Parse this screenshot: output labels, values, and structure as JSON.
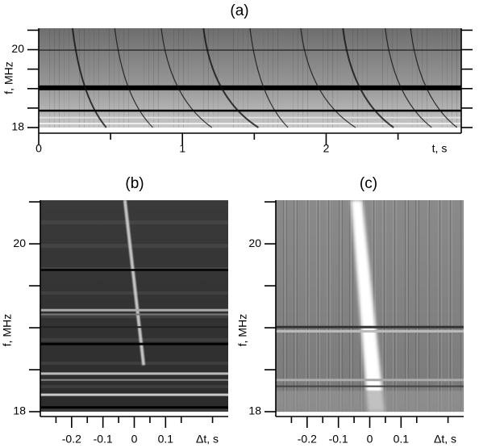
{
  "chart_data": [
    {
      "type": "spectrogram",
      "title": "(a)",
      "xlabel": "t, s",
      "ylabel": "f, MHz",
      "xlim": [
        0,
        2.94
      ],
      "xticks": [
        0,
        1,
        2
      ],
      "xticks_minor": [
        0.5,
        1.5,
        2.5
      ],
      "ylim": [
        18,
        20.55
      ],
      "yticks": [
        18,
        20
      ],
      "yticks_minor": [
        18.5,
        19,
        19.5,
        20.5
      ]
    },
    {
      "type": "spectrogram",
      "title": "(b)",
      "xlabel": "Δt, s",
      "ylabel": "f, MHz",
      "xlim": [
        -0.3,
        0.3
      ],
      "xticks": [
        -0.2,
        -0.1,
        0,
        0.1
      ],
      "xticks_minor": [
        -0.25,
        -0.15,
        -0.05,
        0.05,
        0.15,
        0.25
      ],
      "ylim": [
        18,
        20.52
      ],
      "yticks": [
        18,
        20
      ],
      "yticks_minor": [
        18.5,
        19,
        19.5,
        20.5
      ]
    },
    {
      "type": "spectrogram",
      "title": "(c)",
      "xlabel": "Δt, s",
      "ylabel": "f, MHz",
      "xlim": [
        -0.3,
        0.3
      ],
      "xticks": [
        -0.2,
        -0.1,
        0,
        0.1
      ],
      "xticks_minor": [
        -0.25,
        -0.15,
        -0.05,
        0.05,
        0.15,
        0.25
      ],
      "ylim": [
        18,
        20.52
      ],
      "yticks": [
        18,
        20
      ],
      "yticks_minor": [
        18.5,
        19,
        19.5,
        20.5
      ]
    }
  ]
}
